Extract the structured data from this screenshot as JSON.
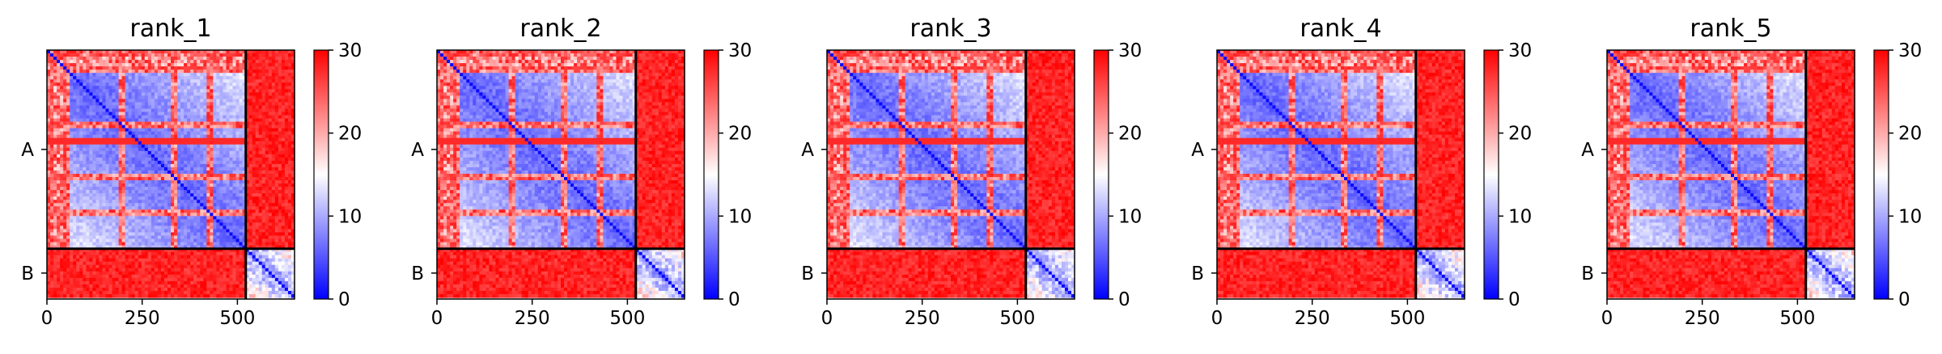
{
  "chart_data": [
    {
      "type": "heatmap",
      "title": "rank_1",
      "x_ticks": [
        0,
        250,
        500
      ],
      "xlim": [
        0,
        650
      ],
      "chain_labels": [
        "A",
        "B"
      ],
      "chain_boundary": 522,
      "colorbar": {
        "range": [
          0,
          30
        ],
        "ticks": [
          0,
          10,
          20,
          30
        ],
        "colors": [
          "#0000ff",
          "#ffffff",
          "#ff0000"
        ]
      }
    },
    {
      "type": "heatmap",
      "title": "rank_2",
      "x_ticks": [
        0,
        250,
        500
      ],
      "xlim": [
        0,
        650
      ],
      "chain_labels": [
        "A",
        "B"
      ],
      "chain_boundary": 522,
      "colorbar": {
        "range": [
          0,
          30
        ],
        "ticks": [
          0,
          10,
          20,
          30
        ],
        "colors": [
          "#0000ff",
          "#ffffff",
          "#ff0000"
        ]
      }
    },
    {
      "type": "heatmap",
      "title": "rank_3",
      "x_ticks": [
        0,
        250,
        500
      ],
      "xlim": [
        0,
        650
      ],
      "chain_labels": [
        "A",
        "B"
      ],
      "chain_boundary": 522,
      "colorbar": {
        "range": [
          0,
          30
        ],
        "ticks": [
          0,
          10,
          20,
          30
        ],
        "colors": [
          "#0000ff",
          "#ffffff",
          "#ff0000"
        ]
      }
    },
    {
      "type": "heatmap",
      "title": "rank_4",
      "x_ticks": [
        0,
        250,
        500
      ],
      "xlim": [
        0,
        650
      ],
      "chain_labels": [
        "A",
        "B"
      ],
      "chain_boundary": 522,
      "colorbar": {
        "range": [
          0,
          30
        ],
        "ticks": [
          0,
          10,
          20,
          30
        ],
        "colors": [
          "#0000ff",
          "#ffffff",
          "#ff0000"
        ]
      }
    },
    {
      "type": "heatmap",
      "title": "rank_5",
      "x_ticks": [
        0,
        250,
        500
      ],
      "xlim": [
        0,
        650
      ],
      "chain_labels": [
        "A",
        "B"
      ],
      "chain_boundary": 522,
      "colorbar": {
        "range": [
          0,
          30
        ],
        "ticks": [
          0,
          10,
          20,
          30
        ],
        "colors": [
          "#0000ff",
          "#ffffff",
          "#ff0000"
        ]
      }
    }
  ]
}
